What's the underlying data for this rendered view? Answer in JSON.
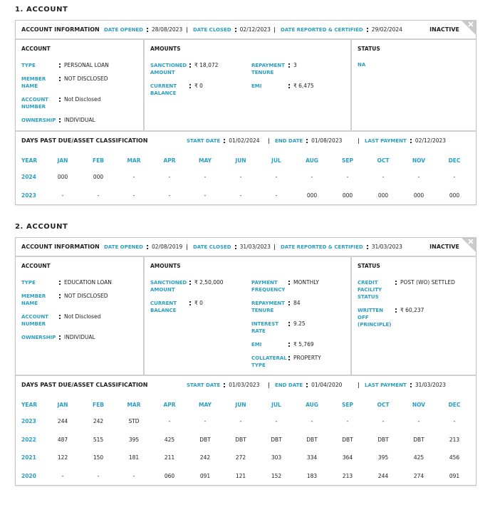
{
  "accounts": [
    {
      "heading": "1. ACCOUNT",
      "info": {
        "title": "ACCOUNT INFORMATION",
        "status": "INACTIVE",
        "dates": [
          {
            "label": "DATE OPENED",
            "value": "28/08/2023"
          },
          {
            "label": "DATE CLOSED",
            "value": "02/12/2023"
          },
          {
            "label": "DATE REPORTED & CERTIFIED",
            "value": "29/02/2024"
          }
        ]
      },
      "account": {
        "title": "ACCOUNT",
        "fields": [
          {
            "label": "TYPE",
            "value": "PERSONAL LOAN"
          },
          {
            "label": "MEMBER NAME",
            "value": "NOT DISCLOSED"
          },
          {
            "label": "ACCOUNT NUMBER",
            "value": "Not Disclosed"
          },
          {
            "label": "OWNERSHIP",
            "value": "INDIVIDUAL"
          }
        ]
      },
      "amounts": {
        "title": "AMOUNTS",
        "left": [
          {
            "label": "SANCTIONED AMOUNT",
            "value": "₹ 18,072"
          },
          {
            "label": "CURRENT BALANCE",
            "value": "₹ 0"
          }
        ],
        "right": [
          {
            "label": "REPAYMENT TENURE",
            "value": "3"
          },
          {
            "label": "EMI",
            "value": "₹ 6,475"
          }
        ]
      },
      "status": {
        "title": "STATUS",
        "text": "NA"
      },
      "dpd": {
        "title": "DAYS PAST DUE/ASSET CLASSIFICATION",
        "dates": [
          {
            "label": "START DATE",
            "value": "01/02/2024"
          },
          {
            "label": "END DATE",
            "value": "01/08/2023"
          },
          {
            "label": "LAST PAYMENT",
            "value": "02/12/2023"
          }
        ],
        "columns": [
          "YEAR",
          "JAN",
          "FEB",
          "MAR",
          "APR",
          "MAY",
          "JUN",
          "JUL",
          "AUG",
          "SEP",
          "OCT",
          "NOV",
          "DEC"
        ],
        "rows": [
          [
            "2024",
            "000",
            "000",
            "-",
            "-",
            "-",
            "-",
            "-",
            "-",
            "-",
            "-",
            "-",
            "-"
          ],
          [
            "2023",
            "-",
            "-",
            "-",
            "-",
            "-",
            "-",
            "-",
            "000",
            "000",
            "000",
            "000",
            "000"
          ]
        ]
      }
    },
    {
      "heading": "2. ACCOUNT",
      "info": {
        "title": "ACCOUNT INFORMATION",
        "status": "INACTIVE",
        "dates": [
          {
            "label": "DATE OPENED",
            "value": "02/08/2019"
          },
          {
            "label": "DATE CLOSED",
            "value": "31/03/2023"
          },
          {
            "label": "DATE REPORTED & CERTIFIED",
            "value": "31/03/2023"
          }
        ]
      },
      "account": {
        "title": "ACCOUNT",
        "fields": [
          {
            "label": "TYPE",
            "value": "EDUCATION LOAN"
          },
          {
            "label": "MEMBER NAME",
            "value": "NOT DISCLOSED"
          },
          {
            "label": "ACCOUNT NUMBER",
            "value": "Not Disclosed"
          },
          {
            "label": "OWNERSHIP",
            "value": "INDIVIDUAL"
          }
        ]
      },
      "amounts": {
        "title": "AMOUNTS",
        "left": [
          {
            "label": "SANCTIONED AMOUNT",
            "value": "₹ 2,50,000"
          },
          {
            "label": "CURRENT BALANCE",
            "value": "₹ 0"
          }
        ],
        "right": [
          {
            "label": "PAYMENT FREQUENCY",
            "value": "MONTHLY"
          },
          {
            "label": "REPAYMENT TENURE",
            "value": "84"
          },
          {
            "label": "INTEREST RATE",
            "value": "9.25"
          },
          {
            "label": "EMI",
            "value": "₹ 5,769"
          },
          {
            "label": "COLLATERAL TYPE",
            "value": "PROPERTY"
          }
        ]
      },
      "status": {
        "title": "STATUS",
        "fields": [
          {
            "label": "CREDIT FACILITY STATUS",
            "value": "POST (WO) SETTLED"
          },
          {
            "label": "WRITTEN OFF (PRINCIPLE)",
            "value": "₹ 60,237"
          }
        ]
      },
      "dpd": {
        "title": "DAYS PAST DUE/ASSET CLASSIFICATION",
        "dates": [
          {
            "label": "START DATE",
            "value": "01/03/2023"
          },
          {
            "label": "END DATE",
            "value": "01/04/2020"
          },
          {
            "label": "LAST PAYMENT",
            "value": "31/03/2023"
          }
        ],
        "columns": [
          "YEAR",
          "JAN",
          "FEB",
          "MAR",
          "APR",
          "MAY",
          "JUN",
          "JUL",
          "AUG",
          "SEP",
          "OCT",
          "NOV",
          "DEC"
        ],
        "rows": [
          [
            "2023",
            "244",
            "242",
            "STD",
            "-",
            "-",
            "-",
            "-",
            "-",
            "-",
            "-",
            "-",
            "-"
          ],
          [
            "2022",
            "487",
            "515",
            "395",
            "425",
            "DBT",
            "DBT",
            "DBT",
            "DBT",
            "DBT",
            "DBT",
            "DBT",
            "213"
          ],
          [
            "2021",
            "122",
            "150",
            "181",
            "211",
            "242",
            "272",
            "303",
            "334",
            "364",
            "395",
            "425",
            "456"
          ],
          [
            "2020",
            "-",
            "-",
            "-",
            "060",
            "091",
            "121",
            "152",
            "183",
            "213",
            "244",
            "274",
            "091"
          ]
        ]
      }
    }
  ]
}
